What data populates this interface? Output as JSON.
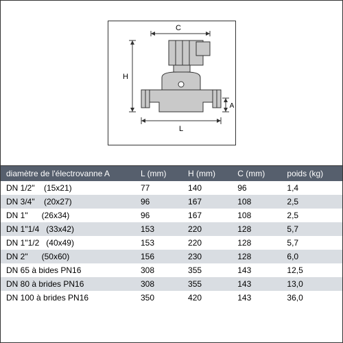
{
  "diagram": {
    "labels": {
      "C": "C",
      "H": "H",
      "A": "A",
      "L": "L"
    },
    "stroke": "#333333",
    "fill": "#ffffff"
  },
  "table": {
    "header_bg": "#565f6d",
    "header_fg": "#ffffff",
    "row_even_bg": "#ffffff",
    "row_odd_bg": "#d9dde2",
    "font_size": 12,
    "columns": [
      "diamètre de l'électrovanne A",
      "L (mm)",
      "H (mm)",
      "C (mm)",
      "poids (kg)"
    ],
    "rows": [
      [
        "DN 1/2\"    (15x21)",
        "77",
        "140",
        "96",
        "1,4"
      ],
      [
        "DN 3/4\"    (20x27)",
        "96",
        "167",
        "108",
        "2,5"
      ],
      [
        "DN 1\"      (26x34)",
        "96",
        "167",
        "108",
        "2,5"
      ],
      [
        "DN 1\"1/4   (33x42)",
        "153",
        "220",
        "128",
        "5,7"
      ],
      [
        "DN 1\"1/2   (40x49)",
        "153",
        "220",
        "128",
        "5,7"
      ],
      [
        "DN 2\"      (50x60)",
        "156",
        "230",
        "128",
        "6,0"
      ],
      [
        "DN 65 à bides PN16",
        "308",
        "355",
        "143",
        "12,5"
      ],
      [
        "DN 80 à brides PN16",
        "308",
        "355",
        "143",
        "13,0"
      ],
      [
        "DN 100 à brides PN16",
        "350",
        "420",
        "143",
        "36,0"
      ]
    ]
  }
}
